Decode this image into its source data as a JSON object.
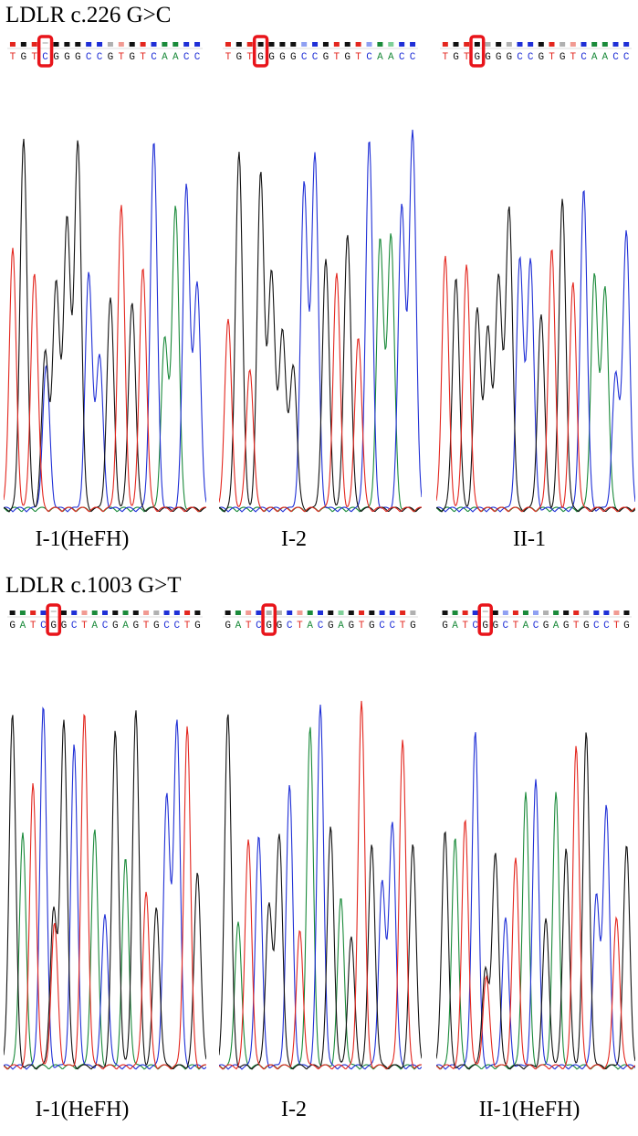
{
  "colors": {
    "A": "#1a8a3a",
    "C": "#1f2fd6",
    "G": "#111111",
    "T": "#e3261e",
    "highlight": "#e8141a"
  },
  "sections": [
    {
      "title": "LDLR c.226 G>C",
      "panels": [
        {
          "label": "I-1(HeFH)",
          "sequence": "TGTCGGGCCGTGTCAACC",
          "highlight_index": 3,
          "heterozygous": true
        },
        {
          "label": "I-2",
          "sequence": "TGTGGGGCCGTGTCAACC",
          "highlight_index": 3,
          "heterozygous": false
        },
        {
          "label": "II-1",
          "sequence": "TGTGGGGCCGTGTCAACC",
          "highlight_index": 3,
          "heterozygous": false
        }
      ]
    },
    {
      "title": "LDLR c.1003 G>T",
      "panels": [
        {
          "label": "I-1(HeFH)",
          "sequence": "GATCGGCTACGAGTGCCTG",
          "highlight_index": 4,
          "heterozygous": true
        },
        {
          "label": "I-2",
          "sequence": "GATCGGCTACGAGTGCCTG",
          "highlight_index": 4,
          "heterozygous": false
        },
        {
          "label": "II-1(HeFH)",
          "sequence": "GATCGGCTACGAGTGCCTG",
          "highlight_index": 4,
          "heterozygous": true
        }
      ]
    }
  ]
}
